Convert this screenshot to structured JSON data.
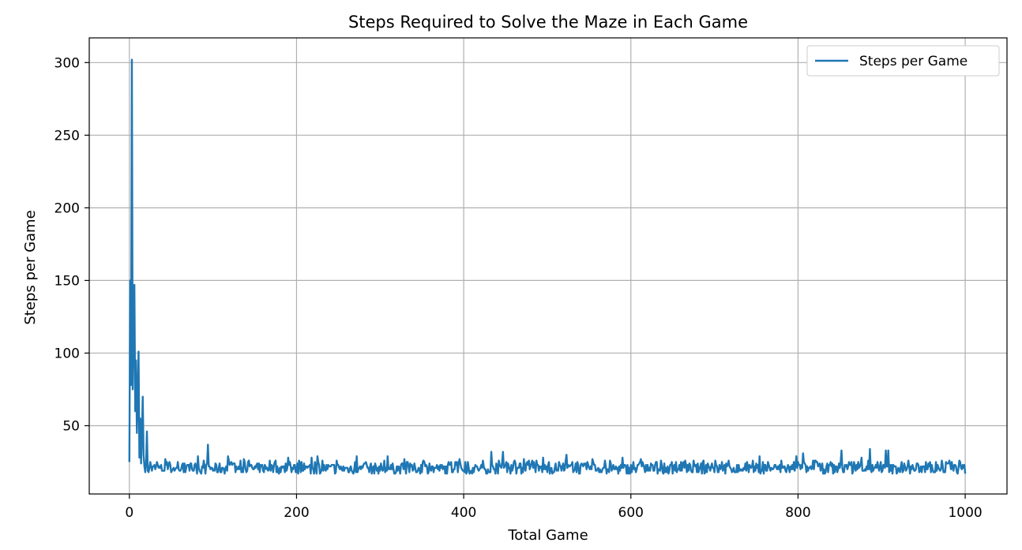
{
  "chart_data": {
    "type": "line",
    "title": "Steps Required to Solve the Maze in Each Game",
    "xlabel": "Total Game",
    "ylabel": "Steps per Game",
    "xlim": [
      -48,
      1050
    ],
    "ylim": [
      3,
      317
    ],
    "xticks": [
      0,
      200,
      400,
      600,
      800,
      1000
    ],
    "xtick_labels": [
      "0",
      "200",
      "400",
      "600",
      "800",
      "1000"
    ],
    "yticks": [
      50,
      100,
      150,
      200,
      250,
      300
    ],
    "ytick_labels": [
      "50",
      "100",
      "150",
      "200",
      "250",
      "300"
    ],
    "grid": true,
    "legend_position": "top-right",
    "colors": {
      "series": "#1f77b4",
      "grid": "#b0b0b0",
      "axis": "#000000"
    },
    "series": [
      {
        "name": "Steps per Game",
        "seed": 7,
        "head": [
          [
            0,
            25
          ],
          [
            1,
            150
          ],
          [
            2,
            78
          ],
          [
            3,
            302
          ],
          [
            4,
            75
          ],
          [
            5,
            120
          ],
          [
            6,
            147
          ],
          [
            7,
            60
          ],
          [
            8,
            95
          ],
          [
            9,
            45
          ],
          [
            10,
            70
          ],
          [
            11,
            101
          ],
          [
            12,
            28
          ],
          [
            13,
            55
          ],
          [
            14,
            24
          ],
          [
            15,
            45
          ],
          [
            16,
            70
          ],
          [
            17,
            30
          ],
          [
            18,
            22
          ],
          [
            19,
            18
          ],
          [
            20,
            25
          ],
          [
            21,
            46
          ],
          [
            22,
            19
          ],
          [
            23,
            18
          ],
          [
            24,
            21
          ]
        ],
        "spikes": [
          [
            43,
            27
          ],
          [
            58,
            25
          ],
          [
            82,
            29
          ],
          [
            88,
            21
          ],
          [
            94,
            37
          ],
          [
            96,
            22
          ],
          [
            118,
            29
          ],
          [
            137,
            27
          ],
          [
            168,
            26
          ],
          [
            190,
            28
          ],
          [
            218,
            28
          ],
          [
            225,
            29
          ],
          [
            272,
            29
          ],
          [
            309,
            29
          ],
          [
            329,
            27
          ],
          [
            352,
            26
          ],
          [
            395,
            27
          ],
          [
            433,
            32
          ],
          [
            447,
            32
          ],
          [
            472,
            27
          ],
          [
            495,
            28
          ],
          [
            523,
            30
          ],
          [
            554,
            27
          ],
          [
            590,
            28
          ],
          [
            612,
            27
          ],
          [
            636,
            26
          ],
          [
            660,
            25
          ],
          [
            687,
            26
          ],
          [
            717,
            26
          ],
          [
            754,
            29
          ],
          [
            780,
            26
          ],
          [
            798,
            29
          ],
          [
            806,
            31
          ],
          [
            839,
            25
          ],
          [
            852,
            33
          ],
          [
            876,
            28
          ],
          [
            886,
            34
          ],
          [
            905,
            33
          ],
          [
            908,
            33
          ],
          [
            953,
            25
          ],
          [
            980,
            24
          ],
          [
            993,
            26
          ]
        ],
        "end": [
          1000,
          17
        ],
        "base_range": [
          17,
          24
        ]
      }
    ]
  }
}
